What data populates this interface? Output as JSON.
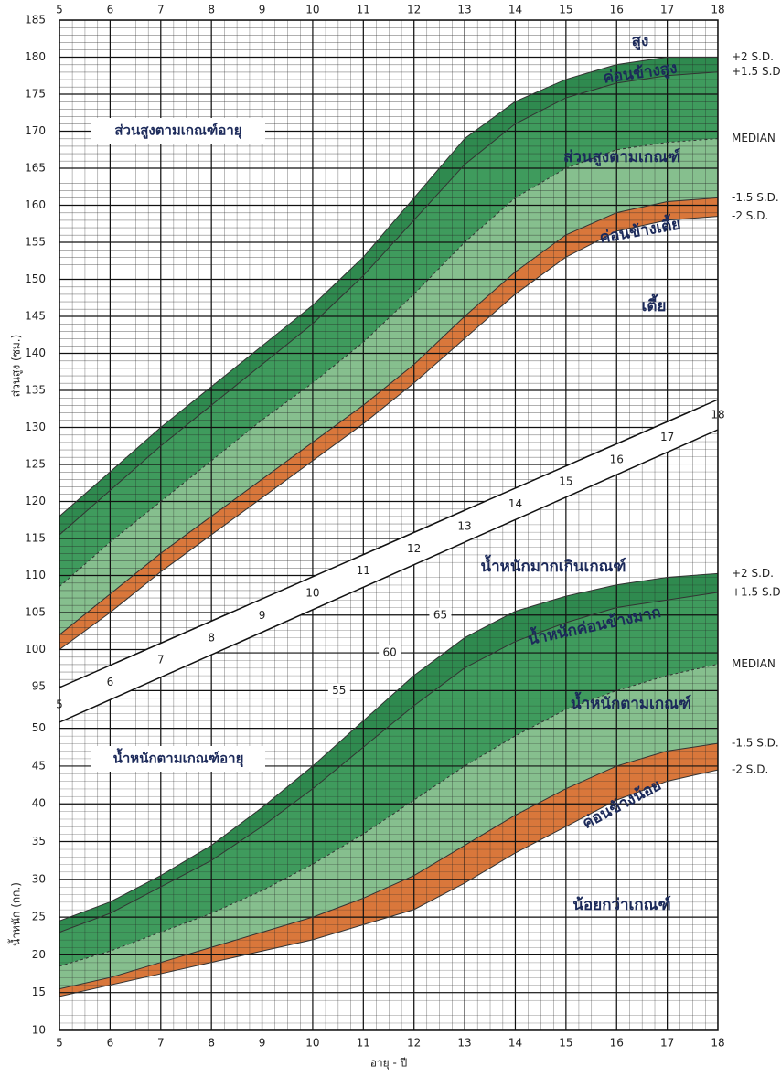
{
  "chart_data": [
    {
      "type": "line",
      "title": "ส่วนสูงตามเกณฑ์อายุ",
      "y_label": "ส่วนสูง (ซม.)",
      "x": [
        5,
        6,
        7,
        8,
        9,
        10,
        11,
        12,
        13,
        14,
        15,
        16,
        17,
        18
      ],
      "xlim": [
        5,
        18
      ],
      "xticks": [
        5,
        6,
        7,
        8,
        9,
        10,
        11,
        12,
        13,
        14,
        15,
        16,
        17,
        18
      ],
      "ylim": [
        95,
        185
      ],
      "yticks": [
        95,
        100,
        105,
        110,
        115,
        120,
        125,
        130,
        135,
        140,
        145,
        150,
        155,
        160,
        165,
        170,
        175,
        180,
        185
      ],
      "grid": true,
      "series": [
        {
          "name": "+2 S.D.",
          "color": "#333333",
          "style": "solid",
          "values": [
            118,
            124,
            130,
            135.5,
            141,
            146.5,
            153,
            161,
            169,
            174,
            177,
            179,
            180,
            180
          ]
        },
        {
          "name": "+1.5 S.D.",
          "color": "#333333",
          "style": "solid",
          "values": [
            115.5,
            121.5,
            127.5,
            133,
            138.5,
            144,
            150.5,
            158,
            165.5,
            171,
            174.5,
            176.5,
            177.5,
            178
          ]
        },
        {
          "name": "MEDIAN",
          "color": "#333333",
          "style": "dashed",
          "values": [
            108.5,
            114.5,
            120,
            125.5,
            131,
            136,
            141.5,
            148,
            155,
            161,
            165,
            167.5,
            168.5,
            169
          ]
        },
        {
          "name": "-1.5 S.D.",
          "color": "#333333",
          "style": "solid",
          "values": [
            102,
            107.5,
            113,
            118,
            123,
            128,
            133,
            138.5,
            145,
            151,
            156,
            159,
            160.5,
            161
          ]
        },
        {
          "name": "-2 S.D.",
          "color": "#333333",
          "style": "solid",
          "values": [
            100,
            105,
            110.5,
            115.5,
            120.5,
            125.5,
            130.5,
            136,
            142,
            148,
            153,
            156.5,
            158,
            158.5
          ]
        }
      ],
      "zones": [
        {
          "label": "สูง",
          "color": "#ffffff"
        },
        {
          "label": "ค่อนข้างสูง",
          "color": "#2f8a4f"
        },
        {
          "label": "ส่วนสูงตามเกณฑ์",
          "color": "#3f9b5d"
        },
        {
          "label": "ค่อนข้างเตี้ย",
          "color": "#86bf8e"
        },
        {
          "label": "เตี้ย",
          "color": "#d9773b"
        }
      ]
    },
    {
      "type": "line",
      "title": "น้ำหนักตามเกณฑ์อายุ",
      "y_label": "น้ำหนัก (กก.)",
      "x_label": "อายุ - ปี",
      "x": [
        5,
        6,
        7,
        8,
        9,
        10,
        11,
        12,
        13,
        14,
        15,
        16,
        17,
        18
      ],
      "xlim": [
        5,
        18
      ],
      "xticks": [
        5,
        6,
        7,
        8,
        9,
        10,
        11,
        12,
        13,
        14,
        15,
        16,
        17,
        18
      ],
      "ylim": [
        10,
        95
      ],
      "yticks": [
        10,
        15,
        20,
        25,
        30,
        35,
        40,
        45,
        50,
        55,
        60,
        65
      ],
      "grid": true,
      "series": [
        {
          "name": "+2 S.D.",
          "color": "#333333",
          "style": "solid",
          "values": [
            24.5,
            27,
            30.5,
            34.5,
            39.5,
            45,
            51,
            57,
            62,
            65.5,
            67.5,
            69,
            70,
            70.5
          ]
        },
        {
          "name": "+1.5 S.D.",
          "color": "#333333",
          "style": "solid",
          "values": [
            23,
            25.5,
            29,
            32.5,
            37,
            42,
            47.5,
            53,
            58,
            61.5,
            64,
            66,
            67,
            68
          ]
        },
        {
          "name": "MEDIAN",
          "color": "#333333",
          "style": "dashed",
          "values": [
            18.5,
            20.5,
            23,
            25.5,
            28.5,
            32,
            36,
            40.5,
            45,
            49,
            52.5,
            55,
            57,
            58.5
          ]
        },
        {
          "name": "-1.5 S.D.",
          "color": "#333333",
          "style": "solid",
          "values": [
            15.5,
            17,
            19,
            21,
            23,
            25,
            27.5,
            30.5,
            34.5,
            38.5,
            42,
            45,
            47,
            48
          ]
        },
        {
          "name": "-2 S.D.",
          "color": "#333333",
          "style": "solid",
          "values": [
            14.5,
            16,
            17.5,
            19,
            20.5,
            22,
            24,
            26,
            29.5,
            33.5,
            37,
            40.5,
            43,
            44.5
          ]
        }
      ],
      "zones": [
        {
          "label": "น้ำหนักมากเกินเกณฑ์",
          "color": "#ffffff"
        },
        {
          "label": "น้ำหนักค่อนข้างมาก",
          "color": "#2f8a4f"
        },
        {
          "label": "น้ำหนักตามเกณฑ์",
          "color": "#3f9b5d"
        },
        {
          "label": "ค่อนข้างน้อย",
          "color": "#86bf8e"
        },
        {
          "label": "น้อยกว่าเกณฑ์",
          "color": "#d9773b"
        }
      ]
    }
  ]
}
